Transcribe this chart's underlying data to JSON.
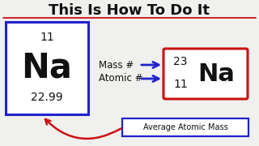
{
  "bg_color": "#f0f0ee",
  "title": "This Is How To Do It",
  "title_color": "#111111",
  "title_underline_color": "#cc1111",
  "left_box_border_color": "#2222cc",
  "right_box_border_color": "#cc1111",
  "label_box_border_color": "#2222cc",
  "arrow_color": "#2222cc",
  "curve_arrow_color": "#cc1111",
  "text_color": "#111111",
  "left_atomic_number": "11",
  "left_symbol": "Na",
  "left_mass": "22.99",
  "right_mass_number": "23",
  "right_atomic_number": "11",
  "right_symbol": "Na",
  "mass_label": "Mass #",
  "atomic_label": "Atomic #",
  "avg_label": "Average Atomic Mass"
}
